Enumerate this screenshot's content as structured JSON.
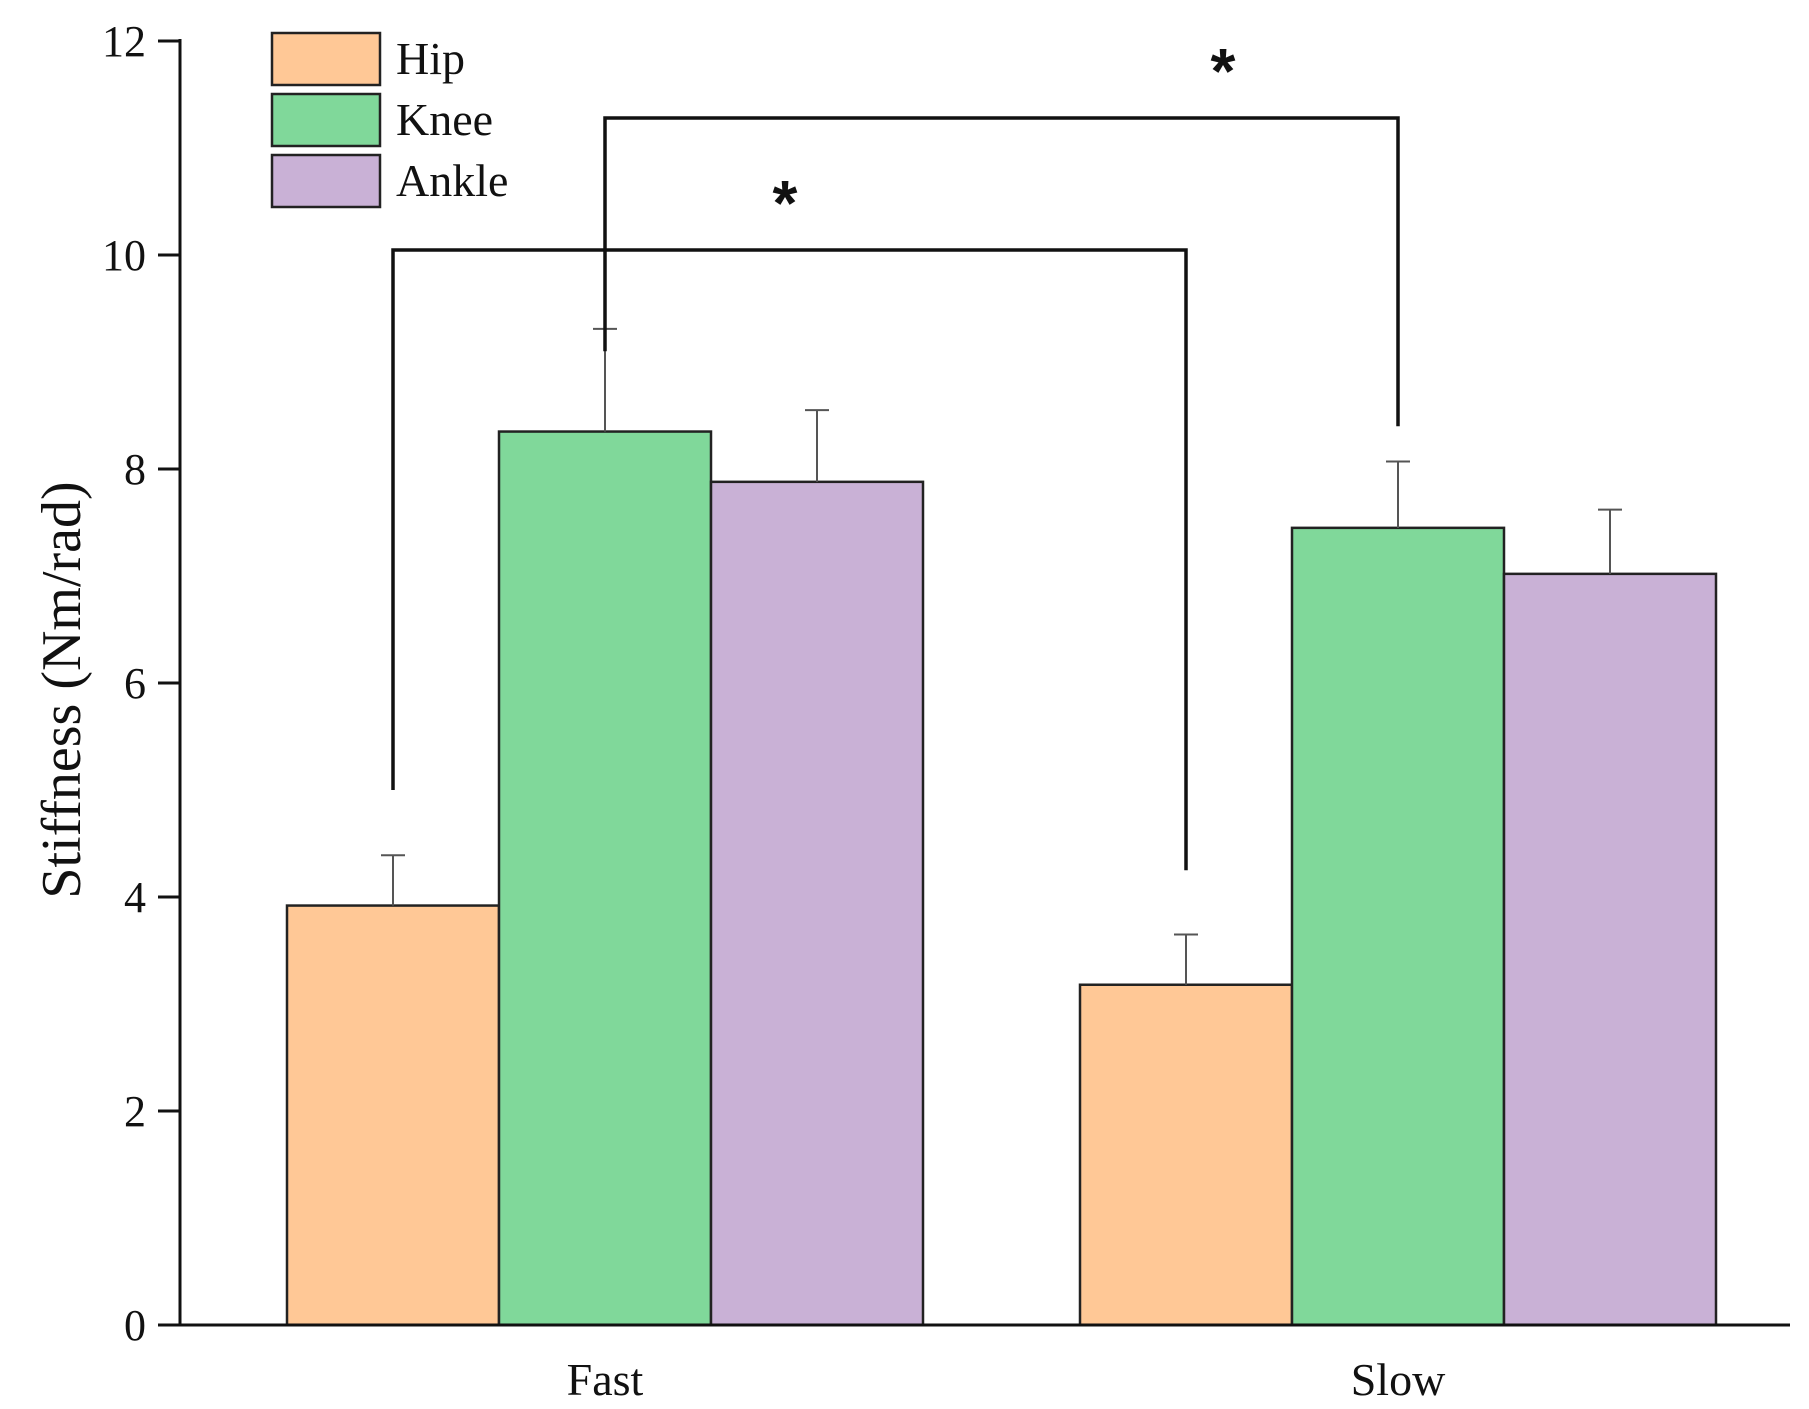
{
  "chart_data": {
    "type": "bar",
    "title": "",
    "xlabel": "",
    "ylabel": "Stiffness (Nm/rad)",
    "ylim": [
      0,
      12
    ],
    "yticks": [
      "0",
      "2",
      "4",
      "6",
      "8",
      "10",
      "12"
    ],
    "categories": [
      "Fast",
      "Slow"
    ],
    "series": [
      {
        "name": "Hip",
        "color": "#FFC896",
        "values": [
          3.92,
          3.18
        ],
        "errors": [
          0.47,
          0.47
        ]
      },
      {
        "name": "Knee",
        "color": "#80D89A",
        "values": [
          8.35,
          7.45
        ],
        "errors": [
          0.96,
          0.62
        ]
      },
      {
        "name": "Ankle",
        "color": "#C9B1D6",
        "values": [
          7.88,
          7.02
        ],
        "errors": [
          0.67,
          0.6
        ]
      }
    ],
    "legend_position": "top-left",
    "significance": [
      {
        "from": "Fast Hip",
        "to": "Slow Hip",
        "label": "*"
      },
      {
        "from": "Fast Knee",
        "to": "Slow Knee",
        "label": "*"
      }
    ]
  }
}
